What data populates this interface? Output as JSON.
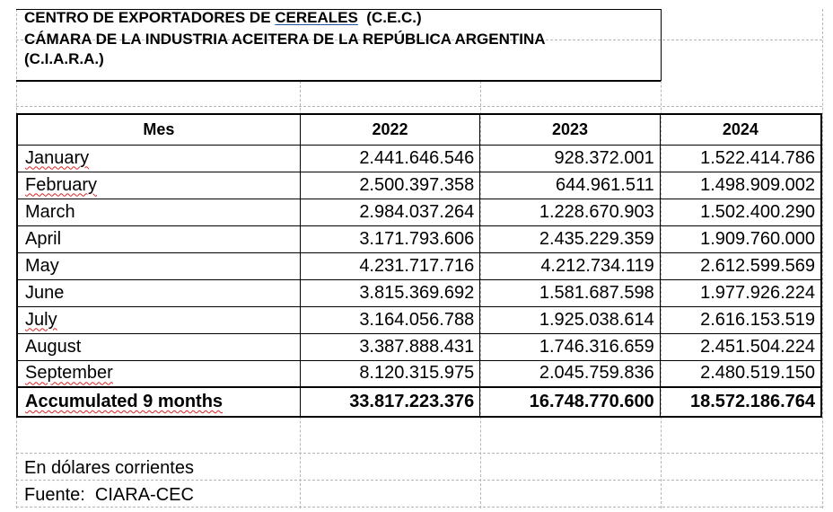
{
  "header": {
    "line1_prefix": "CENTRO DE EXPORTADORES DE ",
    "line1_underlined": "CEREALES",
    "line1_suffix": "  (C.E.C.)",
    "line2": "CÁMARA DE LA INDUSTRIA ACEITERA DE LA REPÚBLICA ARGENTINA",
    "line3": "(C.I.A.R.A.)"
  },
  "table": {
    "columns": [
      "Mes",
      "2022",
      "2023",
      "2024"
    ],
    "rows": [
      {
        "month": "January",
        "v2022": "2.441.646.546",
        "v2023": "928.372.001",
        "v2024": "1.522.414.786"
      },
      {
        "month": "February",
        "v2022": "2.500.397.358",
        "v2023": "644.961.511",
        "v2024": "1.498.909.002"
      },
      {
        "month": "March",
        "v2022": "2.984.037.264",
        "v2023": "1.228.670.903",
        "v2024": "1.502.400.290"
      },
      {
        "month": "April",
        "v2022": "3.171.793.606",
        "v2023": "2.435.229.359",
        "v2024": "1.909.760.000"
      },
      {
        "month": "May",
        "v2022": "4.231.717.716",
        "v2023": "4.212.734.119",
        "v2024": "2.612.599.569"
      },
      {
        "month": "June",
        "v2022": "3.815.369.692",
        "v2023": "1.581.687.598",
        "v2024": "1.977.926.224"
      },
      {
        "month": "July",
        "v2022": "3.164.056.788",
        "v2023": "1.925.038.614",
        "v2024": "2.616.153.519"
      },
      {
        "month": "August",
        "v2022": "3.387.888.431",
        "v2023": "1.746.316.659",
        "v2024": "2.451.504.224"
      },
      {
        "month": "September",
        "v2022": "8.120.315.975",
        "v2023": "2.045.759.836",
        "v2024": "2.480.519.150"
      }
    ],
    "total": {
      "label": "Accumulated 9 months",
      "v2022": "33.817.223.376",
      "v2023": "16.748.770.600",
      "v2024": "18.572.186.764"
    }
  },
  "notes": {
    "currency": "En dólares corrientes",
    "source": "Fuente:  CIARA-CEC"
  }
}
